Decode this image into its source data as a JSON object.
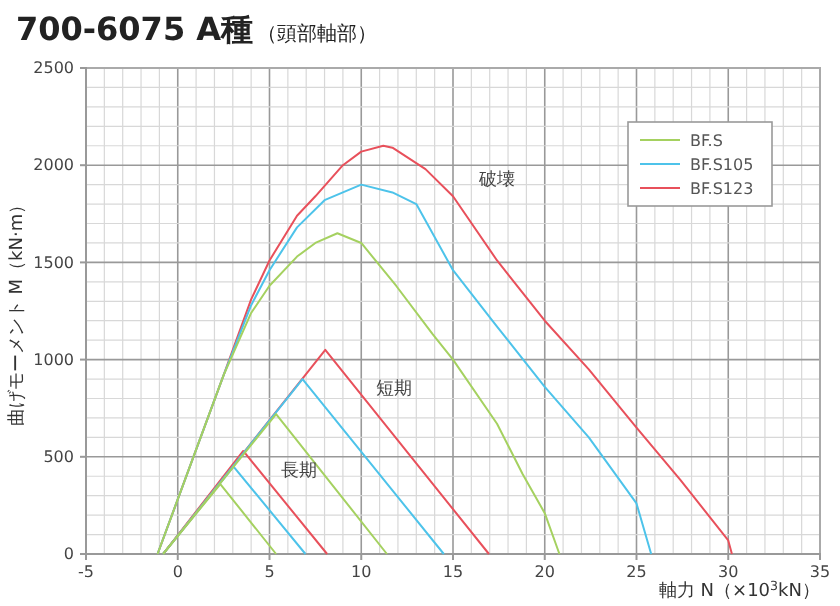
{
  "chart_data": {
    "type": "line",
    "title": "700-6075 A種",
    "subtitle": "（頭部軸部）",
    "xlabel": "軸力 N（×10$^{3}$kN）",
    "ylabel": "曲げモーメント M（kN·m）",
    "xlim": [
      -5,
      35
    ],
    "ylim": [
      0,
      2500
    ],
    "xticks": [
      -5,
      0,
      5,
      10,
      15,
      20,
      25,
      30,
      35
    ],
    "yticks": [
      0,
      500,
      1000,
      1500,
      2000,
      2500
    ],
    "grid": true,
    "legend": "top right",
    "marker": "none",
    "line_style": "solid",
    "series": [
      {
        "name": "BF.S",
        "color": "#a5d160",
        "x": [
          -1.1,
          2.5,
          4,
          5,
          6.5,
          7.5,
          8.7,
          10,
          11.9,
          13.9,
          15,
          17.4,
          18.8,
          20,
          20.8
        ],
        "values": [
          0,
          920,
          1240,
          1380,
          1530,
          1600,
          1650,
          1600,
          1380,
          1130,
          1000,
          670,
          410,
          210,
          0
        ]
      },
      {
        "name": "BF.S105",
        "color": "#4dc3ea",
        "x": [
          -1.1,
          2.5,
          4,
          5,
          6.5,
          8,
          10,
          11.7,
          13,
          15,
          17.4,
          20,
          22.4,
          25,
          25.8
        ],
        "values": [
          0,
          920,
          1280,
          1460,
          1680,
          1820,
          1900,
          1860,
          1800,
          1460,
          1170,
          860,
          600,
          260,
          0
        ]
      },
      {
        "name": "BF.S123",
        "color": "#e8505b",
        "x": [
          -1.1,
          2.5,
          4,
          5,
          6.5,
          7.5,
          9,
          10,
          11.2,
          11.7,
          13.5,
          15,
          17.4,
          20,
          22.4,
          25,
          27.4,
          30,
          30.2
        ],
        "values": [
          0,
          920,
          1310,
          1510,
          1740,
          1840,
          2000,
          2070,
          2100,
          2090,
          1980,
          1840,
          1510,
          1200,
          950,
          650,
          380,
          70,
          0
        ]
      },
      {
        "color": "#a5d160",
        "x": [
          -0.8,
          5.36,
          11.4
        ],
        "values": [
          0,
          720,
          0
        ]
      },
      {
        "color": "#4dc3ea",
        "x": [
          -0.8,
          6.8,
          14.5
        ],
        "values": [
          0,
          900,
          0
        ]
      },
      {
        "color": "#e8505b",
        "x": [
          -0.8,
          8.04,
          16.96
        ],
        "values": [
          0,
          1050,
          0
        ]
      },
      {
        "color": "#a5d160",
        "x": [
          -0.8,
          2.32,
          5.36
        ],
        "values": [
          0,
          360,
          0
        ]
      },
      {
        "color": "#4dc3ea",
        "x": [
          -0.8,
          3.04,
          6.96
        ],
        "values": [
          0,
          450,
          0
        ]
      },
      {
        "color": "#e8505b",
        "x": [
          -0.8,
          3.57,
          8.14
        ],
        "values": [
          0,
          530,
          0
        ]
      }
    ],
    "annotations": [
      "破壊",
      "短期",
      "長期"
    ]
  }
}
